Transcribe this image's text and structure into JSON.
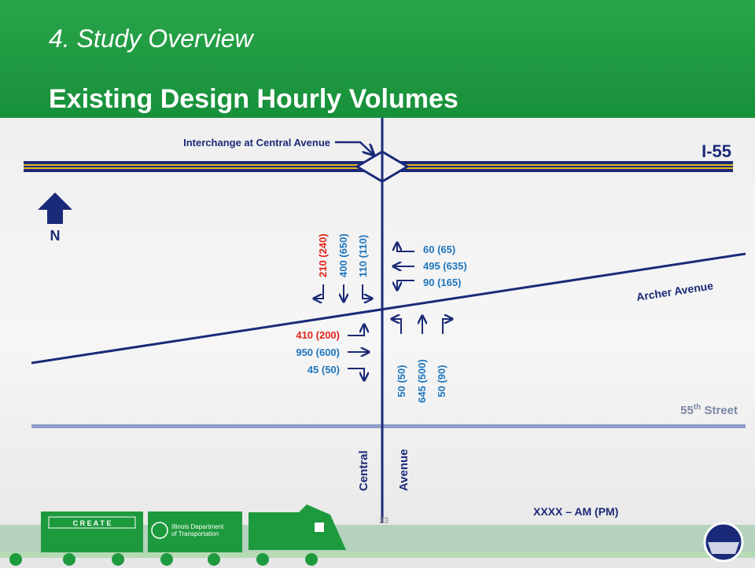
{
  "header": {
    "section": "4. Study Overview",
    "title": "Existing Design Hourly Volumes"
  },
  "map": {
    "interchange_label": "Interchange at Central Avenue",
    "highway": "I-55",
    "north": "N",
    "archer": "Archer Avenue",
    "street_55": {
      "number": "55",
      "suffix": "th",
      "name": "Street"
    },
    "central": "Central",
    "avenue": "Avenue"
  },
  "volumes": {
    "southbound": [
      "210 (240)",
      "400 (650)",
      "110 (110)"
    ],
    "westbound": [
      "60 (65)",
      "495 (635)",
      "90 (165)"
    ],
    "eastbound": [
      "410 (200)",
      "950 (600)",
      "45 (50)"
    ],
    "northbound": [
      "50 (50)",
      "645 (500)",
      "50 (90)"
    ]
  },
  "footer": {
    "legend": "XXXX – AM (PM)",
    "page": "33",
    "create_logo": "C R E A T E",
    "idot_logo": [
      "Illinois Department",
      "of Transportation"
    ]
  }
}
